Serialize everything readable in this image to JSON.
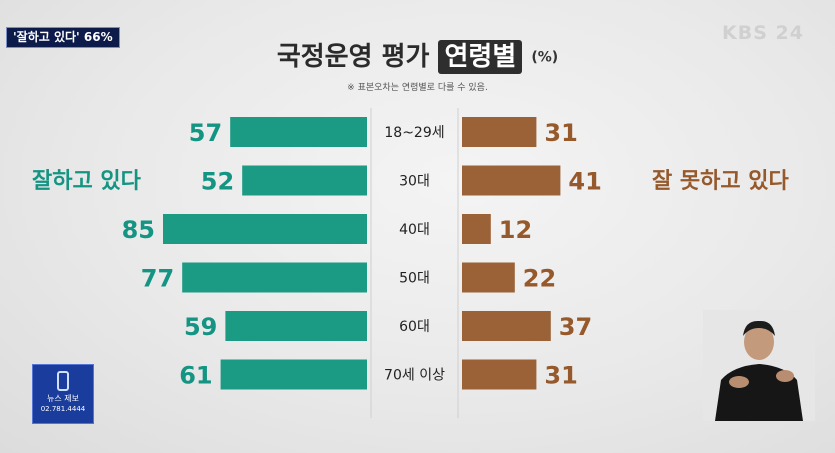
{
  "tag": "'잘하고 있다' 66%",
  "broadcaster": "KBS 24",
  "title_main": "국정운영 평가",
  "title_highlight": "연령별",
  "title_unit": "(%)",
  "note": "※ 표본오차는 연령별로 다를 수 있음.",
  "left_label": "잘하고 있다",
  "right_label": "잘 못하고 있다",
  "news_label": "뉴스 제보",
  "news_phone": "02.781.4444",
  "colors": {
    "positive": "#1b9a84",
    "negative": "#9b6237",
    "positive_text": "#149482",
    "negative_text": "#95592b"
  },
  "chart_data": {
    "type": "bar",
    "categories": [
      "18~29세",
      "30대",
      "40대",
      "50대",
      "60대",
      "70세 이상"
    ],
    "series": [
      {
        "name": "잘하고 있다",
        "values": [
          57,
          52,
          85,
          77,
          59,
          61
        ]
      },
      {
        "name": "잘 못하고 있다",
        "values": [
          31,
          41,
          12,
          22,
          37,
          31
        ]
      }
    ]
  }
}
